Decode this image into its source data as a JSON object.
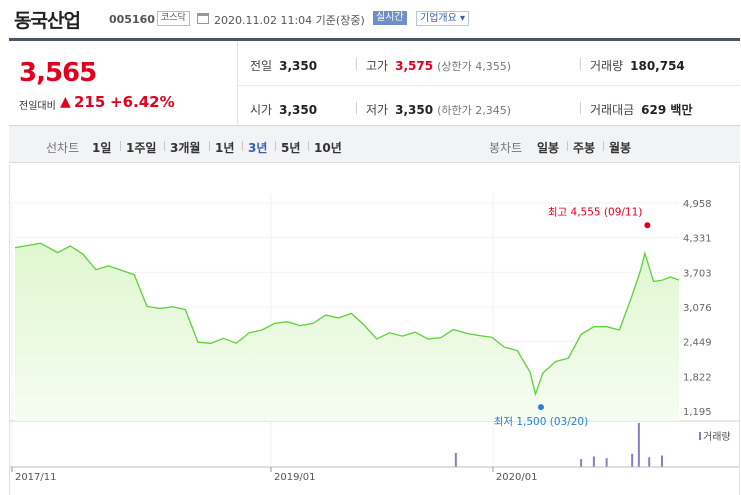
{
  "header": {
    "name": "동국산업",
    "code": "005160",
    "market": "코스닥",
    "datetime": "2020.11.02 11:04 기준(장중)",
    "realtime": "실시간",
    "overview": "기업개요 ▾"
  },
  "summary": {
    "price": "3,565",
    "change_label": "전일대비",
    "change_arrow": "▲",
    "change_abs": "215",
    "change_pct": "+6.42%",
    "prev_label": "전일",
    "prev_value": "3,350",
    "high_label": "고가",
    "high_value": "3,575",
    "upper_limit": "(상한가 4,355)",
    "volume_label": "거래량",
    "volume_value": "180,754",
    "open_label": "시가",
    "open_value": "3,350",
    "low_label": "저가",
    "low_value": "3,350",
    "lower_limit": "(하한가 2,345)",
    "amount_label": "거래대금",
    "amount_value": "629 백만"
  },
  "tabs": {
    "line_label": "선차트",
    "line_periods": [
      "1일",
      "1주일",
      "3개월",
      "1년",
      "3년",
      "5년",
      "10년"
    ],
    "active_period": "3년",
    "candle_label": "봉차트",
    "candle_periods": [
      "일봉",
      "주봉",
      "월봉"
    ]
  },
  "colors": {
    "up": "#e0001f",
    "accent": "#3a5fb0",
    "line": "#5fd03a",
    "fill": "#dff7cf",
    "volume": "#8e7cc3",
    "low_marker": "#2a7fd4"
  },
  "chart_data": {
    "type": "area",
    "yticks": [
      "4,958",
      "4,331",
      "3,703",
      "3,076",
      "2,449",
      "1,822",
      "1,195"
    ],
    "ylim": [
      1195,
      4958
    ],
    "x_ticks": [
      "2017/11",
      "2019/01",
      "2020/01"
    ],
    "x": [
      "2017/11/06",
      "2017/11/27",
      "2017/12/18",
      "2018/01/15",
      "2018/02/05",
      "2018/02/26",
      "2018/03/19",
      "2018/04/09",
      "2018/04/30",
      "2018/05/21",
      "2018/06/11",
      "2018/07/02",
      "2018/07/23",
      "2018/08/13",
      "2018/09/03",
      "2018/09/24",
      "2018/10/15",
      "2018/11/05",
      "2018/11/26",
      "2018/12/17",
      "2019/01/07",
      "2019/01/28",
      "2019/02/18",
      "2019/03/11",
      "2019/04/01",
      "2019/04/22",
      "2019/05/13",
      "2019/06/03",
      "2019/06/24",
      "2019/07/15",
      "2019/08/05",
      "2019/08/26",
      "2019/09/16",
      "2019/10/07",
      "2019/10/28",
      "2019/11/18",
      "2019/12/09",
      "2019/12/30",
      "2020/01/20",
      "2020/02/10",
      "2020/03/02",
      "2020/03/11",
      "2020/03/23",
      "2020/04/13",
      "2020/05/04",
      "2020/05/25",
      "2020/06/15",
      "2020/07/06",
      "2020/07/27",
      "2020/08/17",
      "2020/08/31",
      "2020/09/07",
      "2020/09/21",
      "2020/10/05",
      "2020/10/19",
      "2020/11/02"
    ],
    "values": [
      4150,
      4190,
      4230,
      4060,
      4180,
      4030,
      3750,
      3820,
      3740,
      3660,
      3090,
      3050,
      3080,
      3030,
      2440,
      2420,
      2510,
      2420,
      2610,
      2660,
      2780,
      2810,
      2740,
      2780,
      2930,
      2880,
      2960,
      2750,
      2500,
      2610,
      2550,
      2620,
      2500,
      2520,
      2670,
      2600,
      2560,
      2530,
      2350,
      2290,
      1900,
      1500,
      1880,
      2090,
      2150,
      2580,
      2720,
      2720,
      2660,
      3290,
      3750,
      4050,
      3540,
      3560,
      3620,
      3565
    ],
    "max_label": "최고 4,555 (09/11)",
    "max_point": {
      "x": "2020/09/11",
      "y": 4555
    },
    "min_label": "최저 1,500 (03/20)",
    "min_point": {
      "x": "2020/03/20",
      "y": 1500
    },
    "volume_legend": "거래량",
    "volume": [
      {
        "x": "2019/11/01",
        "v": 0.32
      },
      {
        "x": "2020/05/25",
        "v": 0.18
      },
      {
        "x": "2020/06/15",
        "v": 0.24
      },
      {
        "x": "2020/07/06",
        "v": 0.2
      },
      {
        "x": "2020/08/17",
        "v": 0.3
      },
      {
        "x": "2020/08/28",
        "v": 1.0
      },
      {
        "x": "2020/09/14",
        "v": 0.22
      },
      {
        "x": "2020/10/05",
        "v": 0.26
      }
    ]
  }
}
